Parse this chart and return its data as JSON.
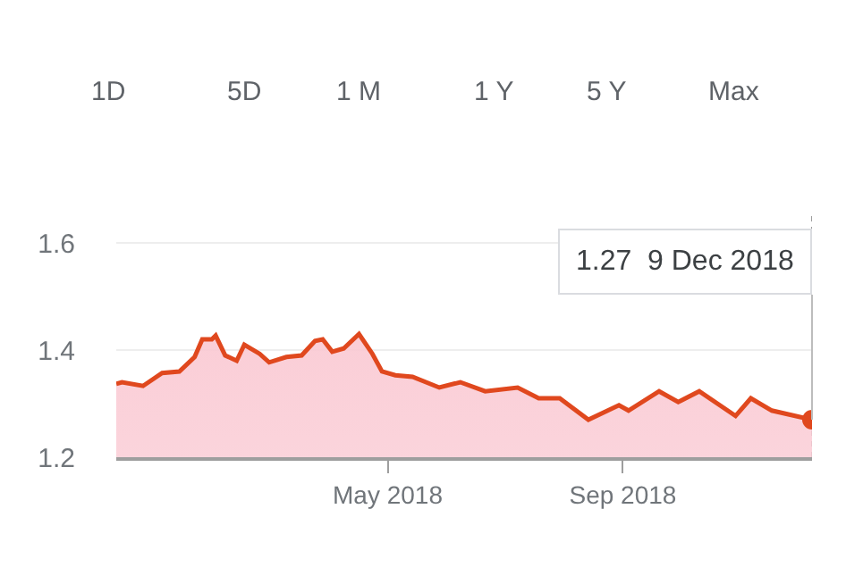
{
  "chart_data": {
    "type": "area",
    "annotations": [
      "1D",
      "5D",
      "1 M",
      "1 Y",
      "5 Y",
      "Max",
      {
        "text": "1.27  9 Dec 2018",
        "x": "2018-12-09",
        "y": 1.27
      }
    ],
    "x": [
      "2017-12-10",
      "2017-12-13",
      "2017-12-24",
      "2018-01-03",
      "2018-01-12",
      "2018-01-20",
      "2018-01-24",
      "2018-01-29",
      "2018-01-31",
      "2018-02-05",
      "2018-02-11",
      "2018-02-15",
      "2018-02-23",
      "2018-02-28",
      "2018-03-09",
      "2018-03-17",
      "2018-03-24",
      "2018-03-28",
      "2018-04-02",
      "2018-04-08",
      "2018-04-16",
      "2018-04-23",
      "2018-04-28",
      "2018-05-05",
      "2018-05-14",
      "2018-05-28",
      "2018-06-08",
      "2018-06-21",
      "2018-07-08",
      "2018-07-19",
      "2018-07-30",
      "2018-08-14",
      "2018-08-30",
      "2018-09-04",
      "2018-09-20",
      "2018-09-30",
      "2018-10-11",
      "2018-10-30",
      "2018-11-07",
      "2018-11-18",
      "2018-12-09"
    ],
    "series": [
      {
        "color": "#e0481e",
        "values": [
          1.337,
          1.34,
          1.333,
          1.357,
          1.36,
          1.387,
          1.42,
          1.42,
          1.427,
          1.39,
          1.38,
          1.41,
          1.393,
          1.377,
          1.387,
          1.39,
          1.417,
          1.42,
          1.397,
          1.403,
          1.43,
          1.393,
          1.36,
          1.353,
          1.35,
          1.33,
          1.34,
          1.323,
          1.33,
          1.31,
          1.31,
          1.27,
          1.297,
          1.287,
          1.323,
          1.303,
          1.323,
          1.277,
          1.31,
          1.287,
          1.27
        ]
      }
    ],
    "xlim": [
      "2017-12-10",
      "2018-12-09"
    ],
    "xticks": [
      {
        "value": "2018-05-01",
        "label": "May 2018"
      },
      {
        "value": "2018-09-01",
        "label": "Sep 2018"
      }
    ],
    "ylim": [
      1.2,
      1.65
    ],
    "yticks": [
      1.2,
      1.4,
      1.6
    ],
    "ref_lines": [
      {
        "axis": "x",
        "value": "2018-12-09",
        "line_style": "dotted",
        "color": "#9e9e9e"
      }
    ],
    "grid": "y",
    "legend": false,
    "marker": "none",
    "line_style": "solid"
  }
}
